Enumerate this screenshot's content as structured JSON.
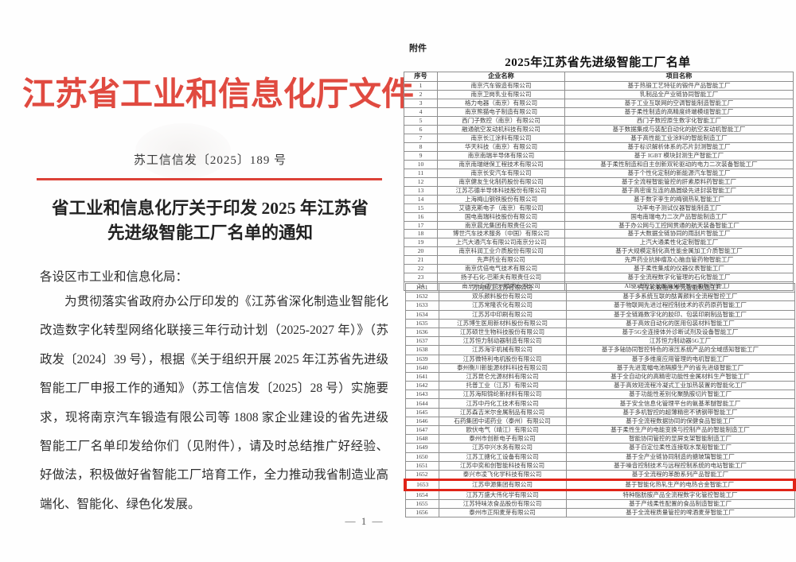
{
  "colors": {
    "header_red": "#e04a40",
    "rule_red": "#dc4238",
    "highlight_red": "#e02418"
  },
  "left_page": {
    "header_title": "江苏省工业和信息化厅文件",
    "doc_number": "苏工信信发〔2025〕189 号",
    "title_line1": "省工业和信息化厅关于印发 2025 年江苏省",
    "title_line2": "先进级智能工厂名单的通知",
    "salutation": "各设区市工业和信息化局：",
    "body": "为贯彻落实省政府办公厅印发的《江苏省深化制造业智能化改造数字化转型网络化联接三年行动计划（2025-2027 年）》（苏政发〔2024〕39 号），根据《关于组织开展 2025 年江苏省先进级智能工厂申报工作的通知》（苏工信信发〔2025〕28 号）实施要求，现将南京汽车锻造有限公司等 1808 家企业建设的省先进级智能工厂名单印发给你们（见附件），请及时总结推广好经验、好做法，积极做好省智能工厂培育工作，全力推动我省制造业高端化、智能化、绿色化发展。",
    "page_number": "— 1 —"
  },
  "right_page": {
    "attachment_label": "附件",
    "table_title": "2025年江苏省先进级智能工厂名单",
    "columns": [
      "序号",
      "企业名称",
      "项目名称"
    ],
    "highlighted_no": "1653",
    "table1_rows": [
      {
        "no": "1",
        "company": "南京汽车锻造有限公司",
        "project": "基于热锻工艺特征的锻件产品智能工厂"
      },
      {
        "no": "2",
        "company": "南京卫岗乳业有限公司",
        "project": "乳制品全产业链协同智能工厂"
      },
      {
        "no": "3",
        "company": "格力电器（南京）有限公司",
        "project": "基于工业互联网的空调智能制造智能工厂"
      },
      {
        "no": "4",
        "company": "南京熊猫电子制造有限公司",
        "project": "基于柔性制造的高精度终端模组智能工厂"
      },
      {
        "no": "5",
        "company": "西门子数控（南京）有限公司",
        "project": "西门子数控原生数字化智能工厂"
      },
      {
        "no": "6",
        "company": "融通航空发动机科技有限公司",
        "project": "基于数据集成与装配自动化的航空发动机智能工厂"
      },
      {
        "no": "7",
        "company": "南京长江涂料有限公司",
        "project": "基于高性能工业涂料的智能制造工厂"
      },
      {
        "no": "8",
        "company": "华天科技（南京）有限公司",
        "project": "基于标识解析体系的芯片封测智能工厂"
      },
      {
        "no": "9",
        "company": "南京南瑞半导体有限公司",
        "project": "基于 IGBT 模块封测生产智能工厂"
      },
      {
        "no": "10",
        "company": "南京南瑞继保工程技术有限公司",
        "project": "基于柔性制造和自主创新双轮驱动的电力二次装备智能工厂"
      },
      {
        "no": "11",
        "company": "南京长安汽车有限公司",
        "project": "基于个性化定制的新能源汽车智能工厂"
      },
      {
        "no": "12",
        "company": "南京健友生化制药股份有限公司",
        "project": "基于全流程智能管控的肝素原料药智能工厂"
      },
      {
        "no": "13",
        "company": "江苏芯德半导体科技股份有限公司",
        "project": "基于高密度互连的晶圆级先进封装智能工厂"
      },
      {
        "no": "14",
        "company": "上海梅山钢铁股份有限公司",
        "project": "基于数字孪生的梅钢热轧智能工厂"
      },
      {
        "no": "15",
        "company": "艾德克斯电子（南京）有限公司",
        "project": "功率电子测试仪器智能制造工厂"
      },
      {
        "no": "16",
        "company": "国电南瑞科技股份有限公司",
        "project": "国电南瑞电力二次产品智能制造工厂"
      },
      {
        "no": "17",
        "company": "南京晨光集团有限责任公司",
        "project": "基于办公网与工控网贯通的航天装备智能工厂"
      },
      {
        "no": "18",
        "company": "博世汽车技术服务（中国）有限公司",
        "project": "基于大数据全链协同的雨刮片智能工厂"
      },
      {
        "no": "19",
        "company": "上汽大通汽车有限公司南京分公司",
        "project": "上汽大通柔性化定制智能工厂"
      },
      {
        "no": "20",
        "company": "南京科润工业介质股份有限公司",
        "project": "基于大规模定制化高性能金属加工介质智能工厂"
      },
      {
        "no": "21",
        "company": "先声药业有限公司",
        "project": "先声药业抗肿瘤及心脑血管药物智能工厂"
      },
      {
        "no": "22",
        "company": "南京优倍电气技术有限公司",
        "project": "基于柔性集成的仪器仪表智能工厂"
      },
      {
        "no": "23",
        "company": "扬子石化-巴斯夫有限责任公司",
        "project": "基于全流程数字化管理的石化智能工厂"
      },
      {
        "no": "24",
        "company": "南京京东方显示技术有限公司",
        "project": "AI驱动的全金属氧化物显示面板智能工厂"
      }
    ],
    "table2_rows": [
      {
        "no": "1631",
        "company": "万向精工江苏有限公司",
        "project": "汽车轮毂轴承单元智能制造工厂"
      },
      {
        "no": "1632",
        "company": "双乐颜料股份有限公司",
        "project": "基于多系统互联的酞菁颜料全流程智控工厂"
      },
      {
        "no": "1633",
        "company": "江苏常隆农化有限公司",
        "project": "基于物联网先进过程控制技术的农药原药智能工厂"
      },
      {
        "no": "1634",
        "company": "江苏苏中印刷有限公司",
        "project": "基于全链路数字化的胶印、包装印刷制品智能工厂"
      },
      {
        "no": "1635",
        "company": "江苏博生医用新材料股份有限公司",
        "project": "基于高效自动化的医用包装材料智能工厂"
      },
      {
        "no": "1636",
        "company": "江苏硕世生物科技股份有限公司",
        "project": "基于5G全连接体外诊断试剂及设备智能工厂"
      },
      {
        "no": "1637",
        "company": "江苏恒力制动器制造有限公司",
        "project": "江苏恒力制动器5G工厂"
      },
      {
        "no": "1638",
        "company": "江苏海宇机械有限公司",
        "project": "基于多轴协同智控特色的液压系统产品的全域感知智能工厂"
      },
      {
        "no": "1639",
        "company": "江苏微特利电机股份有限公司",
        "project": "基于多维度应用管理的电机智能工厂"
      },
      {
        "no": "1640",
        "company": "泰州衡川新能源材料科技有限公司",
        "project": "基于先进宽幅电池隔膜生产的省先进级智能工厂"
      },
      {
        "no": "1641",
        "company": "江苏昆仑光源材料有限公司",
        "project": "基于全自动化的高精密功能性金属材料生产智能工厂"
      },
      {
        "no": "1642",
        "company": "托普工业（江苏）有限公司",
        "project": "基于高效短流程冷凝式工业加热装置的智能化工厂"
      },
      {
        "no": "1643",
        "company": "江苏海阳锦纶新材料有限公司",
        "project": "基于功能性差别化聚酰胺切片智能工厂"
      },
      {
        "no": "1644",
        "company": "江苏中丹化工技术有限公司",
        "project": "基于安全信息化管理平台的氨基苯醚智能工厂"
      },
      {
        "no": "1645",
        "company": "江苏森吉米尔金属制品有限公司",
        "project": "基于多机智控的超薄精密不锈钢带智能工厂"
      },
      {
        "no": "1646",
        "company": "石药集团中诺药业（泰州）有限公司",
        "project": "基于全流程数据协同的保健食品智能工厂"
      },
      {
        "no": "1647",
        "company": "欧伏电气（靖江）有限公司",
        "project": "基于柔性生产的电能变换与控制产品的智能制造工厂"
      },
      {
        "no": "1648",
        "company": "泰州市创新电子有限公司",
        "project": "智能协同管控的显屏支架智能制造工厂"
      },
      {
        "no": "1649",
        "company": "江苏中兴水务有限公司",
        "project": "基于自定位柔性连接取水泵船智能工厂"
      },
      {
        "no": "1650",
        "company": "江苏工搪化工设备有限公司",
        "project": "基于全产业链协同制造的搪玻璃智能工厂"
      },
      {
        "no": "1651",
        "company": "江苏中奕和创智能科技有限公司",
        "project": "基于噪音控制技术与远程控制系统的电站智能工厂"
      },
      {
        "no": "1652",
        "company": "泰兴市凌飞化学科技有限公司",
        "project": "基于全流程的苯酚系列产品智能工厂"
      },
      {
        "no": "1653",
        "company": "江苏申源集团有限公司",
        "project": "基于智能化热轧生产的电热合金智能工厂"
      },
      {
        "no": "1654",
        "company": "江苏万盛大伟化学有限公司",
        "project": "特种脂肪胺产品全流程数字化管控智能工厂"
      },
      {
        "no": "1655",
        "company": "江苏特味浓食品股份有限公司",
        "project": "基于产线柔性配置的食品制造智能工厂"
      },
      {
        "no": "1656",
        "company": "泰州市正阳麦芽有限公司",
        "project": "基于全流程质量管控的啤酒麦芽智能工厂"
      }
    ]
  }
}
